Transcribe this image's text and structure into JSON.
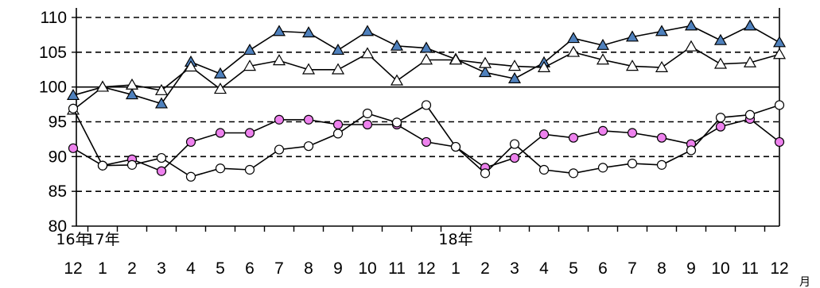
{
  "chart_data": {
    "type": "line",
    "title": "",
    "xlabel": "",
    "ylabel": "",
    "x_unit": "月",
    "ylim": [
      80,
      110
    ],
    "yticks": [
      80,
      85,
      90,
      95,
      100,
      105,
      110
    ],
    "reference_line": 100,
    "categories": [
      "12",
      "1",
      "2",
      "3",
      "4",
      "5",
      "6",
      "7",
      "8",
      "9",
      "10",
      "11",
      "12",
      "1",
      "2",
      "3",
      "4",
      "5",
      "6",
      "7",
      "8",
      "9",
      "10",
      "11",
      "12"
    ],
    "year_labels": [
      {
        "index": 0,
        "text": "16年"
      },
      {
        "index": 1,
        "text": "17年"
      },
      {
        "index": 13,
        "text": "18年"
      }
    ],
    "grid": {
      "horizontal": true,
      "style": "dashed"
    },
    "legend": "none",
    "series": [
      {
        "marker": "triangle",
        "fill": "#4f81bd",
        "values": [
          98.8,
          100.0,
          98.9,
          97.6,
          103.6,
          101.9,
          105.3,
          108.0,
          107.8,
          105.3,
          108.0,
          105.9,
          105.6,
          104.0,
          102.1,
          101.2,
          103.5,
          107.0,
          106.0,
          107.2,
          108.0,
          108.8,
          106.7,
          108.8,
          106.4
        ]
      },
      {
        "marker": "triangle",
        "fill": "#ffffff",
        "values": [
          96.7,
          100.0,
          100.3,
          99.5,
          102.9,
          99.7,
          103.0,
          103.8,
          102.5,
          102.5,
          104.8,
          100.9,
          103.9,
          103.9,
          103.4,
          103.0,
          102.8,
          105.0,
          103.9,
          103.0,
          102.8,
          105.8,
          103.3,
          103.5,
          104.7
        ]
      },
      {
        "marker": "circle",
        "fill": "#ee82ee",
        "values": [
          91.2,
          88.7,
          89.6,
          87.9,
          92.1,
          93.4,
          93.4,
          95.3,
          95.3,
          94.6,
          94.6,
          94.6,
          92.1,
          91.4,
          88.4,
          89.8,
          93.2,
          92.7,
          93.7,
          93.4,
          92.7,
          91.8,
          94.3,
          95.4,
          92.1
        ]
      },
      {
        "marker": "circle",
        "fill": "#ffffff",
        "values": [
          96.9,
          88.7,
          88.8,
          89.8,
          87.1,
          88.3,
          88.1,
          91.0,
          91.5,
          93.3,
          96.2,
          94.9,
          97.4,
          91.4,
          87.6,
          91.8,
          88.1,
          87.6,
          88.4,
          89.0,
          88.8,
          90.9,
          95.6,
          96.0,
          97.4
        ]
      }
    ]
  }
}
